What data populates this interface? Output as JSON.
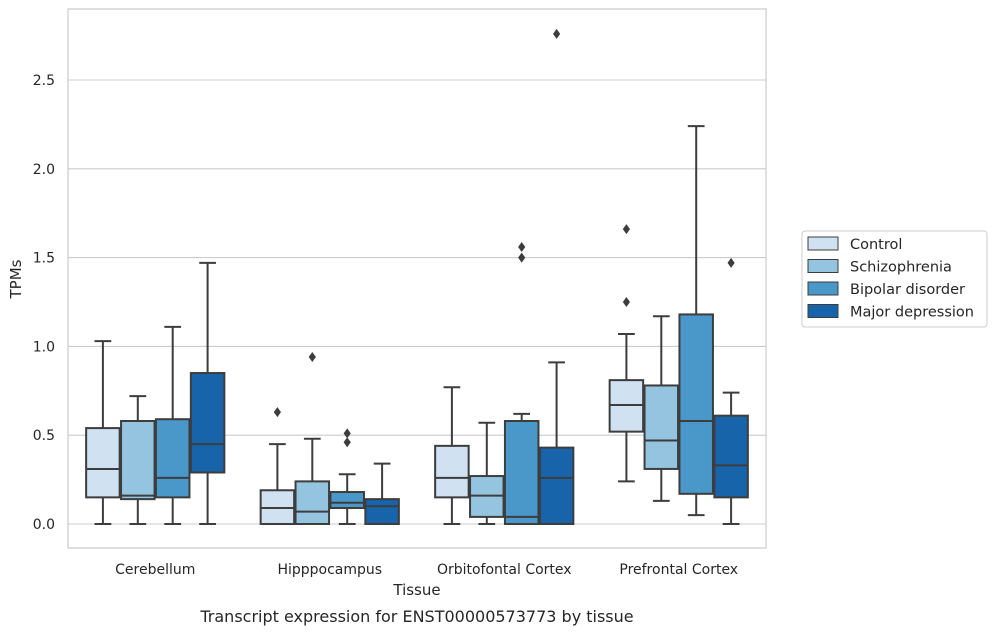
{
  "chart_data": {
    "type": "boxplot",
    "title": "Transcript expression for ENST00000573773 by tissue",
    "xlabel": "Tissue",
    "ylabel": "TPMs",
    "ylim": [
      -0.13,
      2.92
    ],
    "yticks": [
      0.0,
      0.5,
      1.0,
      1.5,
      2.0,
      2.5
    ],
    "ytick_labels": [
      "0.0",
      "0.5",
      "1.0",
      "1.5",
      "2.0",
      "2.5"
    ],
    "grid": "horizontal",
    "legend_position": "right",
    "categories": [
      "Cerebellum",
      "Hipppocampus",
      "Orbitofontal Cortex",
      "Prefrontal Cortex"
    ],
    "series": [
      {
        "name": "Control",
        "color": "#d0e1f2",
        "boxes": [
          {
            "whislo": 0.0,
            "q1": 0.15,
            "med": 0.31,
            "q3": 0.54,
            "whishi": 1.03,
            "fliers": []
          },
          {
            "whislo": 0.0,
            "q1": 0.0,
            "med": 0.09,
            "q3": 0.19,
            "whishi": 0.45,
            "fliers": [
              0.63
            ]
          },
          {
            "whislo": 0.0,
            "q1": 0.15,
            "med": 0.26,
            "q3": 0.44,
            "whishi": 0.77,
            "fliers": []
          },
          {
            "whislo": 0.24,
            "q1": 0.52,
            "med": 0.67,
            "q3": 0.81,
            "whishi": 1.07,
            "fliers": [
              1.25,
              1.66
            ]
          }
        ]
      },
      {
        "name": "Schizophrenia",
        "color": "#94c4df",
        "boxes": [
          {
            "whislo": 0.0,
            "q1": 0.14,
            "med": 0.16,
            "q3": 0.58,
            "whishi": 0.72,
            "fliers": []
          },
          {
            "whislo": 0.0,
            "q1": 0.0,
            "med": 0.07,
            "q3": 0.24,
            "whishi": 0.48,
            "fliers": [
              0.94
            ]
          },
          {
            "whislo": 0.0,
            "q1": 0.04,
            "med": 0.16,
            "q3": 0.27,
            "whishi": 0.57,
            "fliers": []
          },
          {
            "whislo": 0.13,
            "q1": 0.31,
            "med": 0.47,
            "q3": 0.78,
            "whishi": 1.17,
            "fliers": []
          }
        ]
      },
      {
        "name": "Bipolar disorder",
        "color": "#4a98c9",
        "boxes": [
          {
            "whislo": 0.0,
            "q1": 0.15,
            "med": 0.26,
            "q3": 0.59,
            "whishi": 1.11,
            "fliers": []
          },
          {
            "whislo": 0.0,
            "q1": 0.09,
            "med": 0.12,
            "q3": 0.18,
            "whishi": 0.28,
            "fliers": [
              0.46,
              0.51
            ]
          },
          {
            "whislo": 0.0,
            "q1": 0.0,
            "med": 0.04,
            "q3": 0.58,
            "whishi": 0.62,
            "fliers": [
              1.5,
              1.56
            ]
          },
          {
            "whislo": 0.05,
            "q1": 0.17,
            "med": 0.58,
            "q3": 1.18,
            "whishi": 2.24,
            "fliers": []
          }
        ]
      },
      {
        "name": "Major depression",
        "color": "#1764ab",
        "boxes": [
          {
            "whislo": 0.0,
            "q1": 0.29,
            "med": 0.45,
            "q3": 0.85,
            "whishi": 1.47,
            "fliers": []
          },
          {
            "whislo": 0.0,
            "q1": 0.0,
            "med": 0.1,
            "q3": 0.14,
            "whishi": 0.34,
            "fliers": []
          },
          {
            "whislo": 0.0,
            "q1": 0.0,
            "med": 0.26,
            "q3": 0.43,
            "whishi": 0.91,
            "fliers": [
              2.76
            ]
          },
          {
            "whislo": 0.0,
            "q1": 0.15,
            "med": 0.33,
            "q3": 0.61,
            "whishi": 0.74,
            "fliers": [
              1.47
            ]
          }
        ]
      }
    ]
  }
}
